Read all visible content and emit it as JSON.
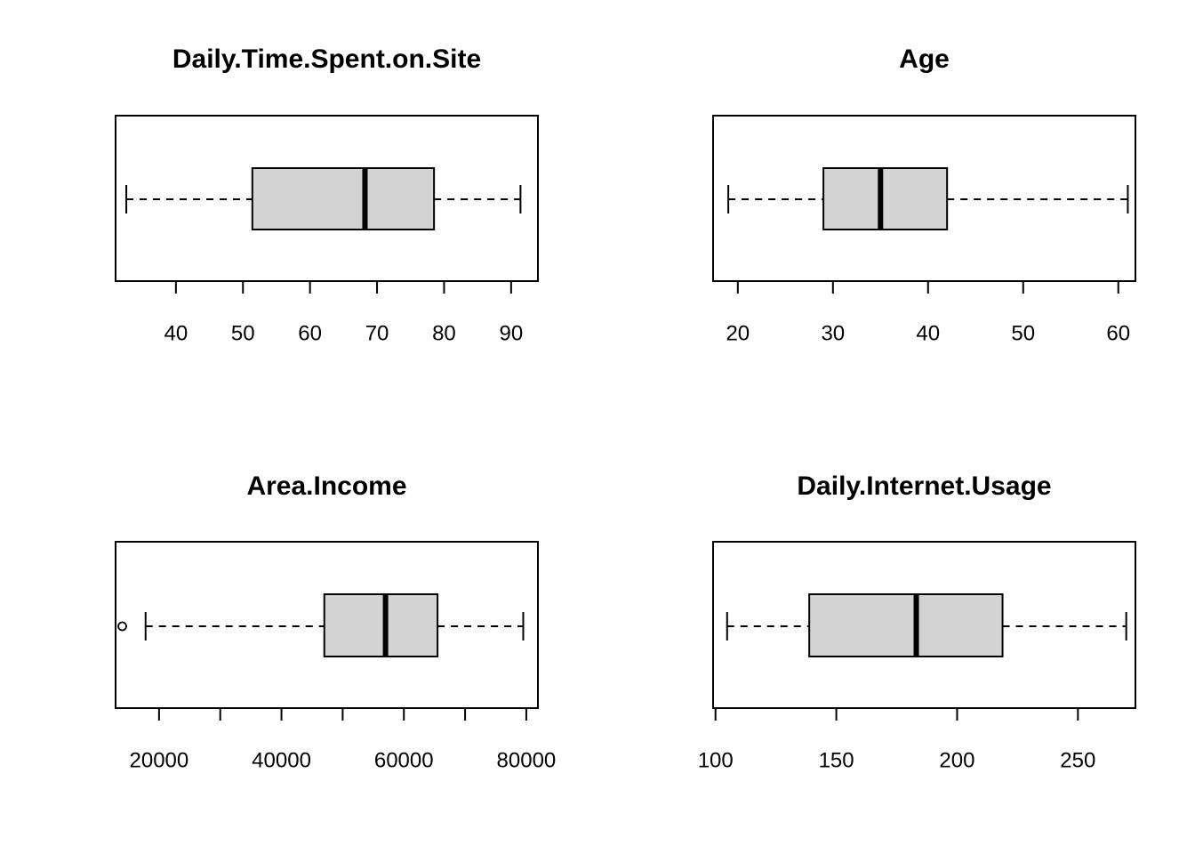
{
  "chart_data": [
    {
      "type": "boxplot",
      "orientation": "horizontal",
      "title": "Daily.Time.Spent.on.Site",
      "xlim": [
        31,
        94
      ],
      "ticks": [
        40,
        50,
        60,
        70,
        80,
        90
      ],
      "tick_labels": [
        "40",
        "50",
        "60",
        "70",
        "80",
        "90"
      ],
      "box": {
        "whisker_low": 32.6,
        "q1": 51.4,
        "median": 68.2,
        "q3": 78.5,
        "whisker_high": 91.4
      },
      "outliers": []
    },
    {
      "type": "boxplot",
      "orientation": "horizontal",
      "title": "Age",
      "xlim": [
        17.4,
        61.8
      ],
      "ticks": [
        20,
        30,
        40,
        50,
        60
      ],
      "tick_labels": [
        "20",
        "30",
        "40",
        "50",
        "60"
      ],
      "box": {
        "whisker_low": 19,
        "q1": 29,
        "median": 35,
        "q3": 42,
        "whisker_high": 61
      },
      "outliers": []
    },
    {
      "type": "boxplot",
      "orientation": "horizontal",
      "title": "Area.Income",
      "xlim": [
        12900,
        81900
      ],
      "ticks": [
        20000,
        30000,
        40000,
        50000,
        60000,
        70000,
        80000
      ],
      "tick_labels": [
        "20000",
        "",
        "40000",
        "",
        "60000",
        "",
        "80000"
      ],
      "box": {
        "whisker_low": 17800,
        "q1": 47000,
        "median": 57000,
        "q3": 65500,
        "whisker_high": 79500
      },
      "outliers": [
        13996
      ]
    },
    {
      "type": "boxplot",
      "orientation": "horizontal",
      "title": "Daily.Internet.Usage",
      "xlim": [
        99.0,
        273.8
      ],
      "ticks": [
        100,
        150,
        200,
        250
      ],
      "tick_labels": [
        "100",
        "150",
        "200",
        "250"
      ],
      "box": {
        "whisker_low": 104.8,
        "q1": 138.8,
        "median": 183.1,
        "q3": 218.8,
        "whisker_high": 270.0
      },
      "outliers": []
    }
  ]
}
